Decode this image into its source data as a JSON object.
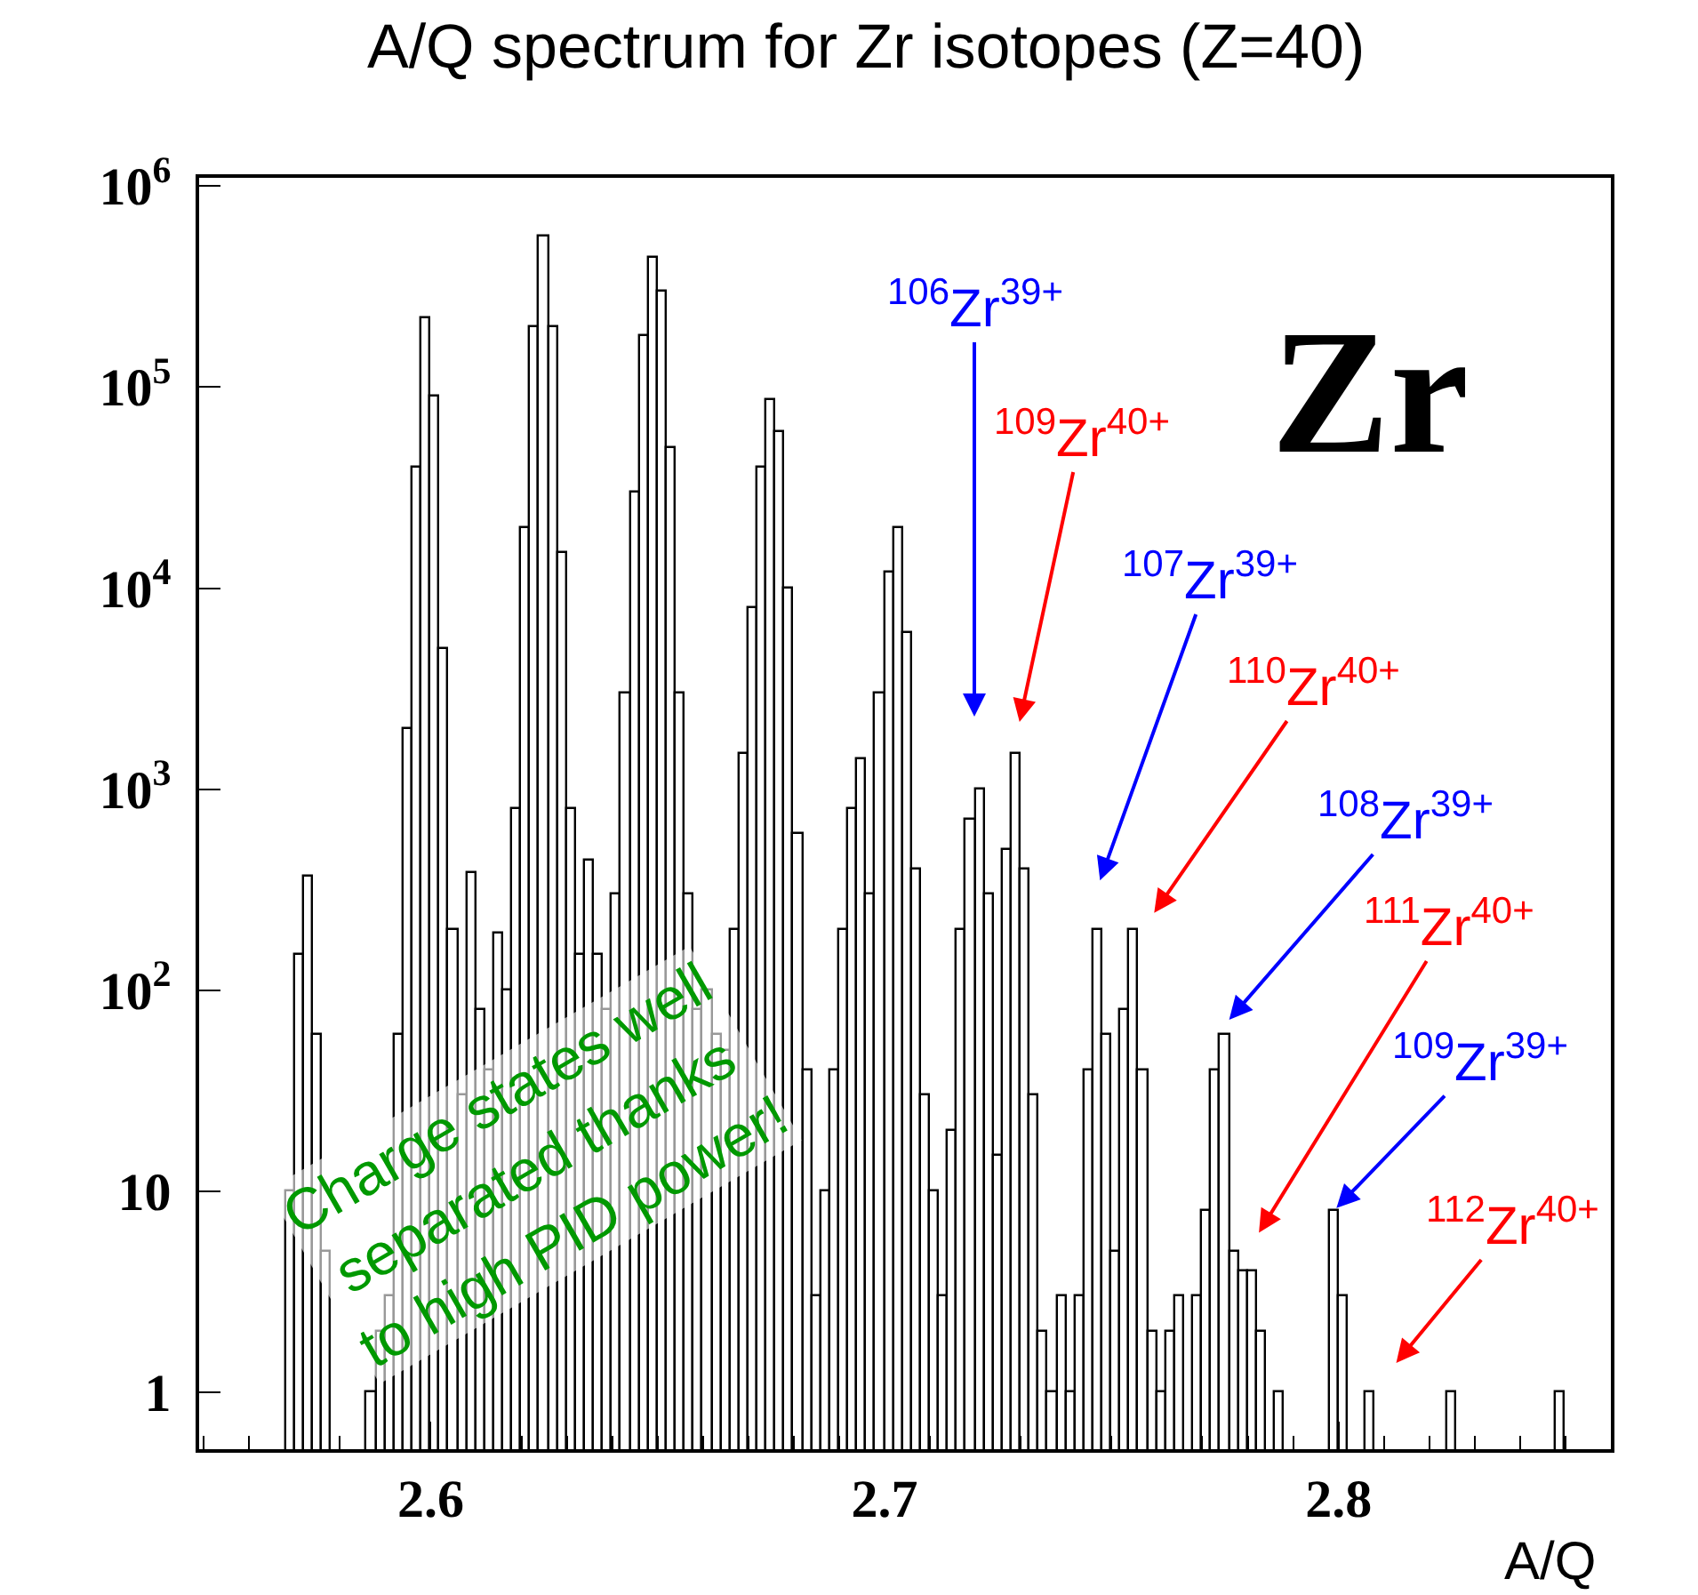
{
  "chart_data": {
    "type": "histogram",
    "title": "A/Q spectrum for Zr isotopes (Z=40)",
    "xlabel": "A/Q",
    "color": "#000000",
    "bins": [
      2.55,
      2.552,
      2.554,
      2.556,
      2.558,
      2.56,
      2.562,
      2.564,
      2.566,
      2.568,
      2.57,
      2.572,
      2.574,
      2.576,
      2.578,
      2.58,
      2.582,
      2.584,
      2.586,
      2.588,
      2.59,
      2.592,
      2.594,
      2.596,
      2.598,
      2.6,
      2.602,
      2.604,
      2.606,
      2.608,
      2.61,
      2.612,
      2.614,
      2.616,
      2.618,
      2.62,
      2.622,
      2.624,
      2.626,
      2.628,
      2.63,
      2.632,
      2.634,
      2.636,
      2.638,
      2.64,
      2.642,
      2.644,
      2.646,
      2.648,
      2.65,
      2.652,
      2.654,
      2.656,
      2.658,
      2.66,
      2.662,
      2.664,
      2.666,
      2.668,
      2.67,
      2.672,
      2.674,
      2.676,
      2.678,
      2.68,
      2.682,
      2.684,
      2.686,
      2.688,
      2.69,
      2.692,
      2.694,
      2.696,
      2.698,
      2.7,
      2.702,
      2.704,
      2.706,
      2.708,
      2.71,
      2.712,
      2.714,
      2.716,
      2.718,
      2.72,
      2.722,
      2.724,
      2.726,
      2.728,
      2.73,
      2.732,
      2.734,
      2.736,
      2.738,
      2.74,
      2.742,
      2.744,
      2.746,
      2.748,
      2.75,
      2.752,
      2.754,
      2.756,
      2.758,
      2.76,
      2.762,
      2.764,
      2.766,
      2.768,
      2.77,
      2.772,
      2.774,
      2.776,
      2.778,
      2.78,
      2.782,
      2.784,
      2.786,
      2.788,
      2.79,
      2.792,
      2.794,
      2.796,
      2.798,
      2.8,
      2.802,
      2.804,
      2.806,
      2.808,
      2.81,
      2.812,
      2.814,
      2.816,
      2.818,
      2.82,
      2.822,
      2.824,
      2.826,
      2.828,
      2.83,
      2.832,
      2.834,
      2.836,
      2.838,
      2.84,
      2.842,
      2.844,
      2.846,
      2.848,
      2.85,
      2.852,
      2.854,
      2.856,
      2.858,
      2.86
    ],
    "values": [
      null,
      null,
      null,
      null,
      null,
      null,
      null,
      null,
      null,
      10,
      150,
      370,
      60,
      5,
      null,
      null,
      null,
      null,
      1,
      2,
      3,
      60,
      2000,
      40000,
      220000,
      90000,
      5000,
      200,
      30,
      380,
      80,
      40,
      190,
      100,
      800,
      20000,
      200000,
      560000,
      200000,
      15000,
      800,
      150,
      440,
      150,
      80,
      300,
      3000,
      30000,
      180000,
      440000,
      300000,
      50000,
      3000,
      300,
      80,
      100,
      60,
      50,
      200,
      1500,
      8000,
      40000,
      87000,
      60000,
      10000,
      600,
      40,
      3,
      10,
      40,
      200,
      800,
      1400,
      300,
      3000,
      12000,
      20000,
      6000,
      400,
      30,
      10,
      3,
      20,
      200,
      700,
      1000,
      300,
      15,
      500,
      1500,
      400,
      30,
      2,
      1,
      3,
      1,
      3,
      40,
      200,
      60,
      5,
      80,
      200,
      40,
      2,
      1,
      2,
      3,
      null,
      3,
      8,
      40,
      60,
      5,
      4,
      4,
      2,
      null,
      1,
      null,
      null,
      null,
      null,
      null,
      8,
      3,
      null,
      null,
      1,
      null,
      null,
      null,
      null,
      null,
      null,
      null,
      null,
      1,
      null,
      null,
      null,
      null,
      null,
      null,
      null,
      null,
      null,
      null,
      null,
      1,
      null,
      null,
      null,
      null,
      null
    ],
    "xlim": [
      2.549,
      2.86
    ],
    "xticks": [
      2.6,
      2.7,
      2.8
    ],
    "ylim": [
      0.52,
      1100000
    ],
    "log": true,
    "yticks": [
      1,
      10,
      {
        "value": 100,
        "label": "10$^{2}$"
      },
      {
        "value": 1000,
        "label": "10$^{3}$"
      },
      {
        "value": 10000,
        "label": "10$^{4}$"
      },
      {
        "value": 100000,
        "label": "10$^{5}$"
      },
      {
        "value": 1000000,
        "label": "10$^{6}$"
      }
    ],
    "annotations": [
      "$^{106}$Zr$^{39+}$",
      "$^{109}$Zr$^{40+}$",
      "$^{107}$Zr$^{39+}$",
      "$^{110}$Zr$^{40+}$",
      "$^{108}$Zr$^{39+}$",
      "$^{111}$Zr$^{40+}$",
      {
        "text": "$^{109}$Zr$^{39+}$",
        "x": 2.799,
        "y": 8
      },
      "$^{112}$Zr$^{40+}$",
      "Zr",
      "Charge states well\nseparated thanks\nto high PID power!"
    ]
  }
}
